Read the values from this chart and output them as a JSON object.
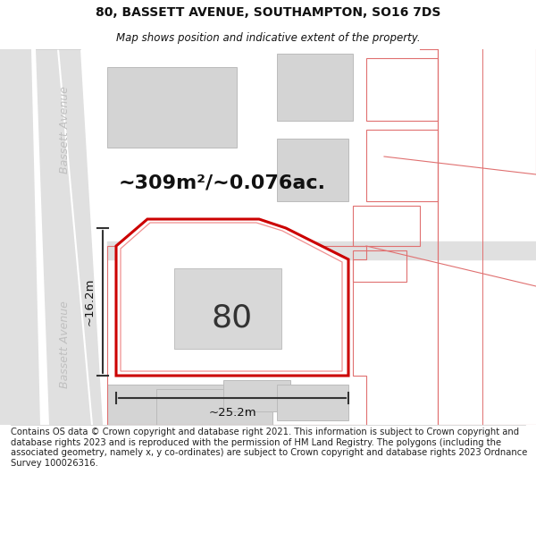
{
  "title": "80, BASSETT AVENUE, SOUTHAMPTON, SO16 7DS",
  "subtitle": "Map shows position and indicative extent of the property.",
  "area_text": "~309m²/~0.076ac.",
  "number_label": "80",
  "dim_width": "~25.2m",
  "dim_height": "~16.2m",
  "bg_color": "#ffffff",
  "map_bg": "#ffffff",
  "road_color": "#e0e0e0",
  "road_edge_color": "#cccccc",
  "building_color": "#d4d4d4",
  "building_edge_color": "#bbbbbb",
  "highlight_color": "#cc0000",
  "highlight_fill": "#ffffff",
  "shadow_color": "#f0b0b0",
  "pink_plot_color": "#f5c0c0",
  "pink_edge_color": "#e07070",
  "street_label_color": "#c0c0c0",
  "dim_line_color": "#333333",
  "title_fontsize": 10,
  "subtitle_fontsize": 8.5,
  "footer_fontsize": 7.2,
  "footer_text": "Contains OS data © Crown copyright and database right 2021. This information is subject to Crown copyright and database rights 2023 and is reproduced with the permission of HM Land Registry. The polygons (including the associated geometry, namely x, y co-ordinates) are subject to Crown copyright and database rights 2023 Ordnance Survey 100026316."
}
